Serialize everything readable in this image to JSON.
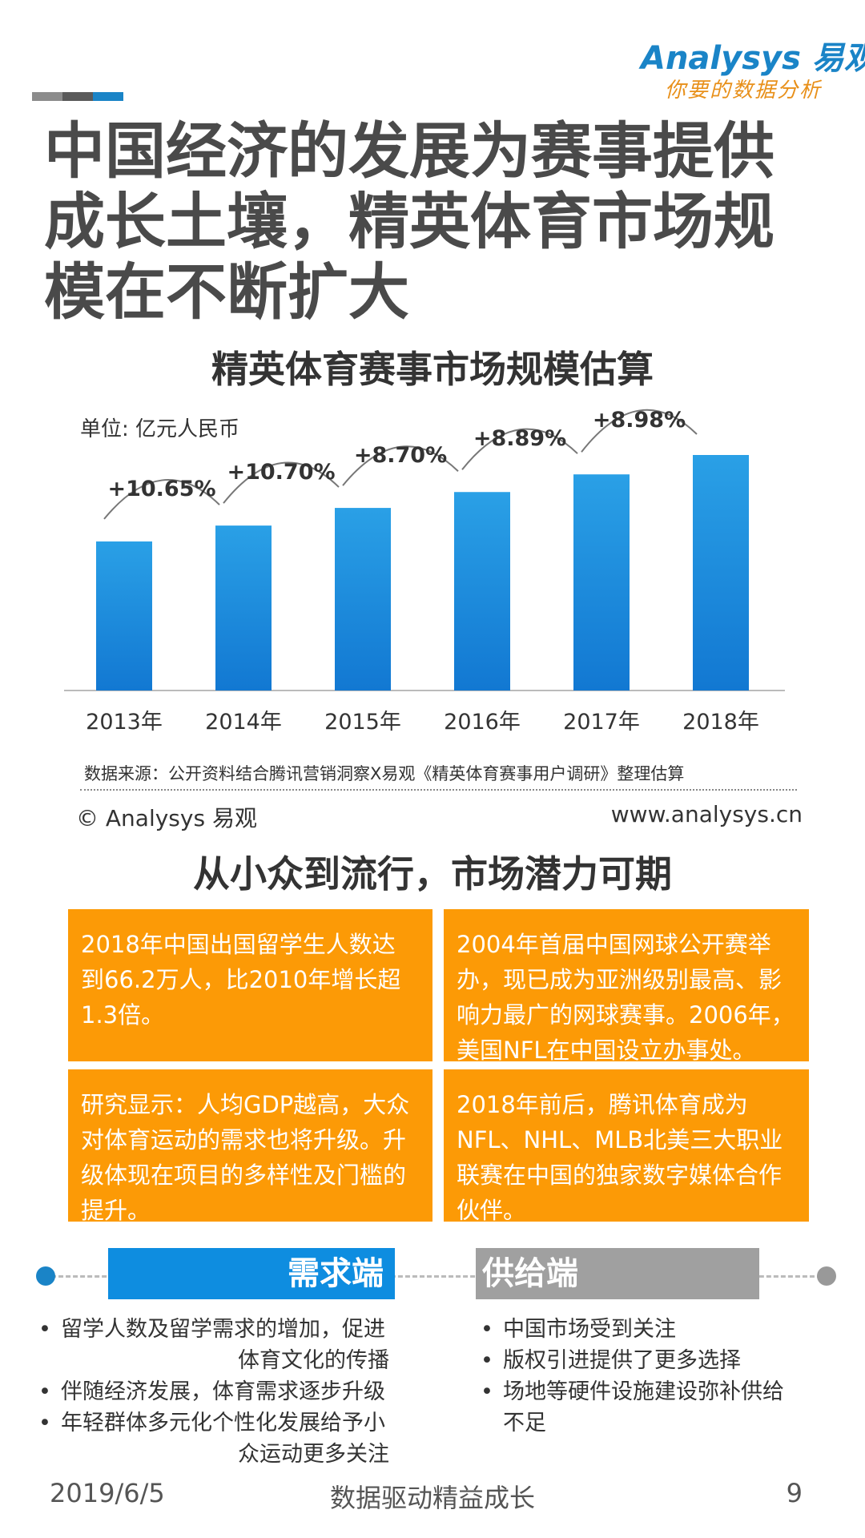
{
  "brand": {
    "logo_text": "Analysys 易观",
    "tagline": "你要的数据分析"
  },
  "colors": {
    "bar_top": "#2aa0e6",
    "bar_bottom": "#1278d2",
    "card": "#fc9a06",
    "demand": "#0e8de0",
    "supply": "#a0a0a0",
    "title": "#4a4a4a"
  },
  "page": {
    "title": "中国经济的发展为赛事提供成长土壤，精英体育市场规模在不断扩大"
  },
  "chart": {
    "title": "精英体育赛事市场规模估算",
    "unit": "单位: 亿元人民币",
    "source": "数据来源：公开资料结合腾讯营销洞察X易观《精英体育赛事用户调研》整理估算",
    "copyright": "© Analysys 易观",
    "website": "www.analysys.cn"
  },
  "chart_data": {
    "type": "bar",
    "categories": [
      "2013年",
      "2014年",
      "2015年",
      "2016年",
      "2017年",
      "2018年"
    ],
    "values": [
      100,
      110.65,
      122.49,
      133.15,
      144.99,
      158.0
    ],
    "growth_labels": [
      "+10.65%",
      "+10.70%",
      "+8.70%",
      "+8.89%",
      "+8.98%"
    ],
    "ylim": [
      0,
      158
    ],
    "grid": false,
    "legend": "none"
  },
  "section": {
    "title": "从小众到流行，市场潜力可期",
    "cards": [
      "2018年中国出国留学生人数达到66.2万人，比2010年增长超1.3倍。",
      "2004年首届中国网球公开赛举办，现已成为亚洲级别最高、影响力最广的网球赛事。2006年，美国NFL在中国设立办事处。",
      "研究显示：人均GDP越高，大众对体育运动的需求也将升级。升级体现在项目的多样性及门槛的提升。",
      "2018年前后，腾讯体育成为NFL、NHL、MLB北美三大职业联赛在中国的独家数字媒体合作伙伴。"
    ]
  },
  "demand": {
    "label": "需求端",
    "items": [
      "留学人数及留学需求的增加，促进",
      "体育文化的传播",
      "伴随经济发展，体育需求逐步升级",
      "年轻群体多元化个性化发展给予小",
      "众运动更多关注"
    ]
  },
  "supply": {
    "label": "供给端",
    "items": [
      "中国市场受到关注",
      "版权引进提供了更多选择",
      "场地等硬件设施建设弥补供给",
      "不足"
    ]
  },
  "footer": {
    "date": "2019/6/5",
    "slogan": "数据驱动精益成长",
    "page": "9"
  }
}
